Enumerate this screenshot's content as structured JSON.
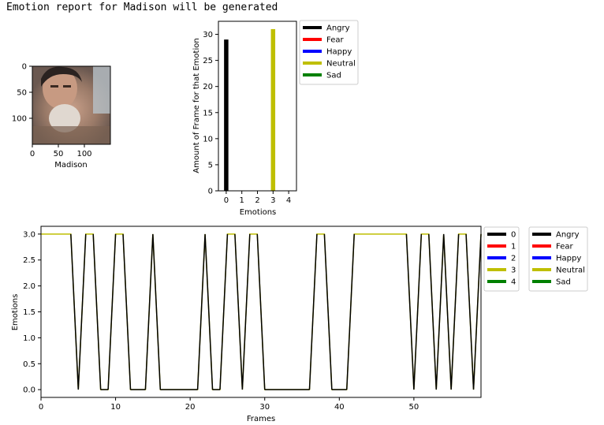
{
  "header": {
    "text": "Emotion report for Madison will be generated"
  },
  "colors": {
    "c0": "#000000",
    "c1": "#ff0000",
    "c2": "#0000ff",
    "c3": "#bfbf00",
    "c4": "#008000"
  },
  "thumbnail": {
    "xlabel": "Madison",
    "xticks": [
      "0",
      "50",
      "100"
    ],
    "yticks": [
      "0",
      "50",
      "100"
    ]
  },
  "chart_data": [
    {
      "type": "bar",
      "categories": [
        "0",
        "1",
        "2",
        "3",
        "4"
      ],
      "values": [
        29,
        0,
        0,
        31,
        0
      ],
      "xlabel": "Emotions",
      "ylabel": "Amount of Frame for that Emotion",
      "ylim": [
        0,
        32.5
      ],
      "yticks": [
        0,
        5,
        10,
        15,
        20,
        25,
        30
      ],
      "legend": [
        "Angry",
        "Fear",
        "Happy",
        "Neutral",
        "Sad"
      ],
      "legend_position": "outside-right"
    },
    {
      "type": "line",
      "xlabel": "Frames",
      "ylabel": "Emotions",
      "xlim": [
        0,
        59
      ],
      "ylim": [
        -0.15,
        3.15
      ],
      "xticks": [
        0,
        10,
        20,
        30,
        40,
        50
      ],
      "yticks": [
        "0.0",
        "0.5",
        "1.0",
        "1.5",
        "2.0",
        "2.5",
        "3.0"
      ],
      "series_values": [
        3,
        3,
        3,
        3,
        3,
        0,
        3,
        3,
        0,
        0,
        3,
        3,
        0,
        0,
        0,
        3,
        0,
        0,
        0,
        0,
        0,
        0,
        3,
        0,
        0,
        3,
        3,
        0,
        3,
        3,
        0,
        0,
        0,
        0,
        0,
        0,
        0,
        3,
        3,
        0,
        0,
        0,
        3,
        3,
        3,
        3,
        3,
        3,
        3,
        3,
        0,
        3,
        3,
        0,
        3,
        0,
        3,
        3,
        0,
        3
      ],
      "legend_a": [
        "0",
        "1",
        "2",
        "3",
        "4"
      ],
      "legend_b": [
        "Angry",
        "Fear",
        "Happy",
        "Neutral",
        "Sad"
      ],
      "legend_position": "outside-right"
    }
  ]
}
